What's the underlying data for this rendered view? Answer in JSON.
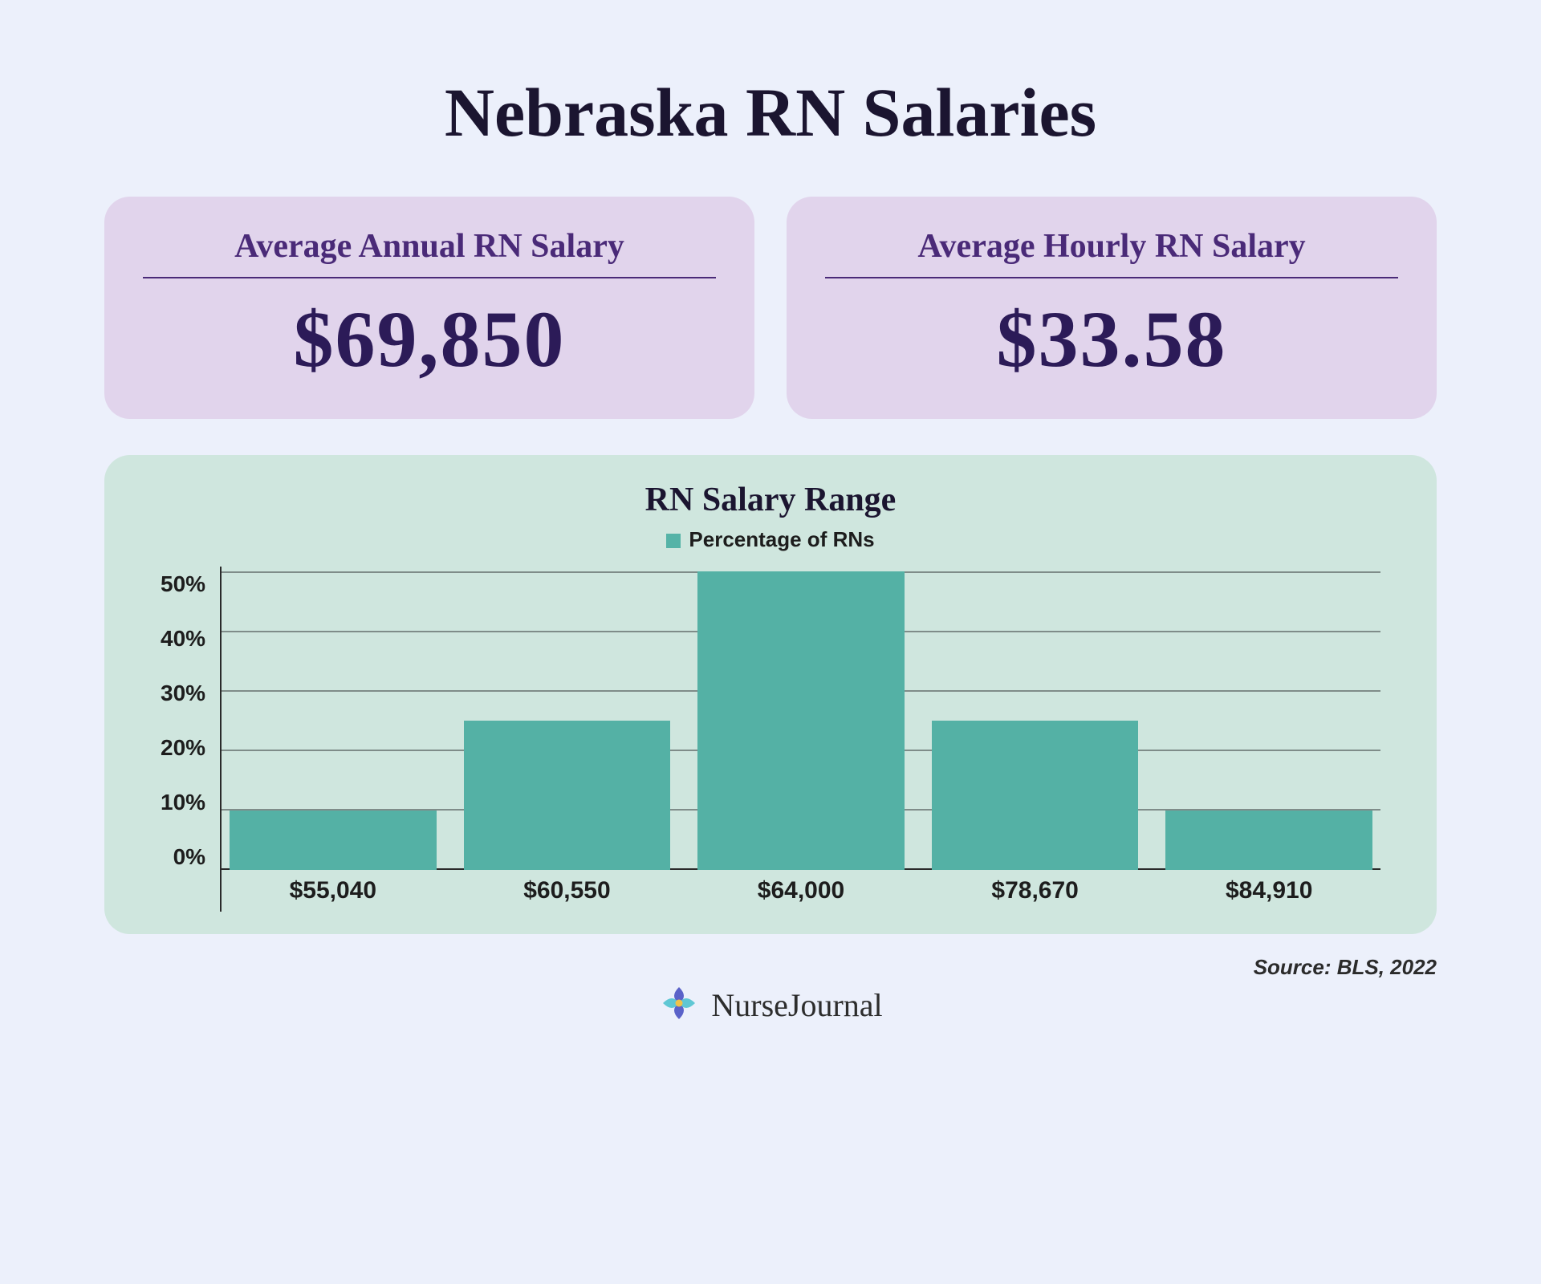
{
  "background_color": "#ecf0fb",
  "title": {
    "text": "Nebraska RN Salaries",
    "color": "#1b1530",
    "fontsize": 86
  },
  "stat_cards": {
    "bg_color": "#e1d4ec",
    "label_color": "#4a2a78",
    "label_fontsize": 42,
    "value_color": "#2c1b58",
    "value_fontsize": 100,
    "divider_color": "#4a2a78",
    "items": [
      {
        "label": "Average Annual RN Salary",
        "value": "$69,850"
      },
      {
        "label": "Average Hourly RN Salary",
        "value": "$33.58"
      }
    ]
  },
  "chart": {
    "type": "bar",
    "card_bg": "#cfe6de",
    "title": {
      "text": "RN Salary Range",
      "color": "#1b1530",
      "fontsize": 42
    },
    "legend": {
      "label": "Percentage of RNs",
      "swatch_color": "#55b3a7",
      "text_color": "#1d1d1d",
      "fontsize": 26
    },
    "y_axis": {
      "ticks": [
        "50%",
        "40%",
        "30%",
        "20%",
        "10%",
        "0%"
      ],
      "fontsize": 28,
      "text_color": "#1d1d1d",
      "max": 50
    },
    "gridline_color": "#7f8c89",
    "axis_line_color": "#2a2a2a",
    "bar_color": "#54b1a5",
    "bar_label_fontsize": 30,
    "bar_label_color": "#1d1d1d",
    "bars": [
      {
        "label": "$55,040",
        "value": 10
      },
      {
        "label": "$60,550",
        "value": 25
      },
      {
        "label": "$64,000",
        "value": 50
      },
      {
        "label": "$78,670",
        "value": 25
      },
      {
        "label": "$84,910",
        "value": 10
      }
    ]
  },
  "source": {
    "text": "Source: BLS, 2022",
    "color": "#2b2b2b",
    "fontsize": 26
  },
  "brand": {
    "name": "NurseJournal",
    "text_color": "#2d2d2d",
    "fontsize": 40,
    "logo_colors": {
      "primary": "#5a62c9",
      "accent": "#5fc7d4",
      "dot": "#f0c24a"
    }
  }
}
